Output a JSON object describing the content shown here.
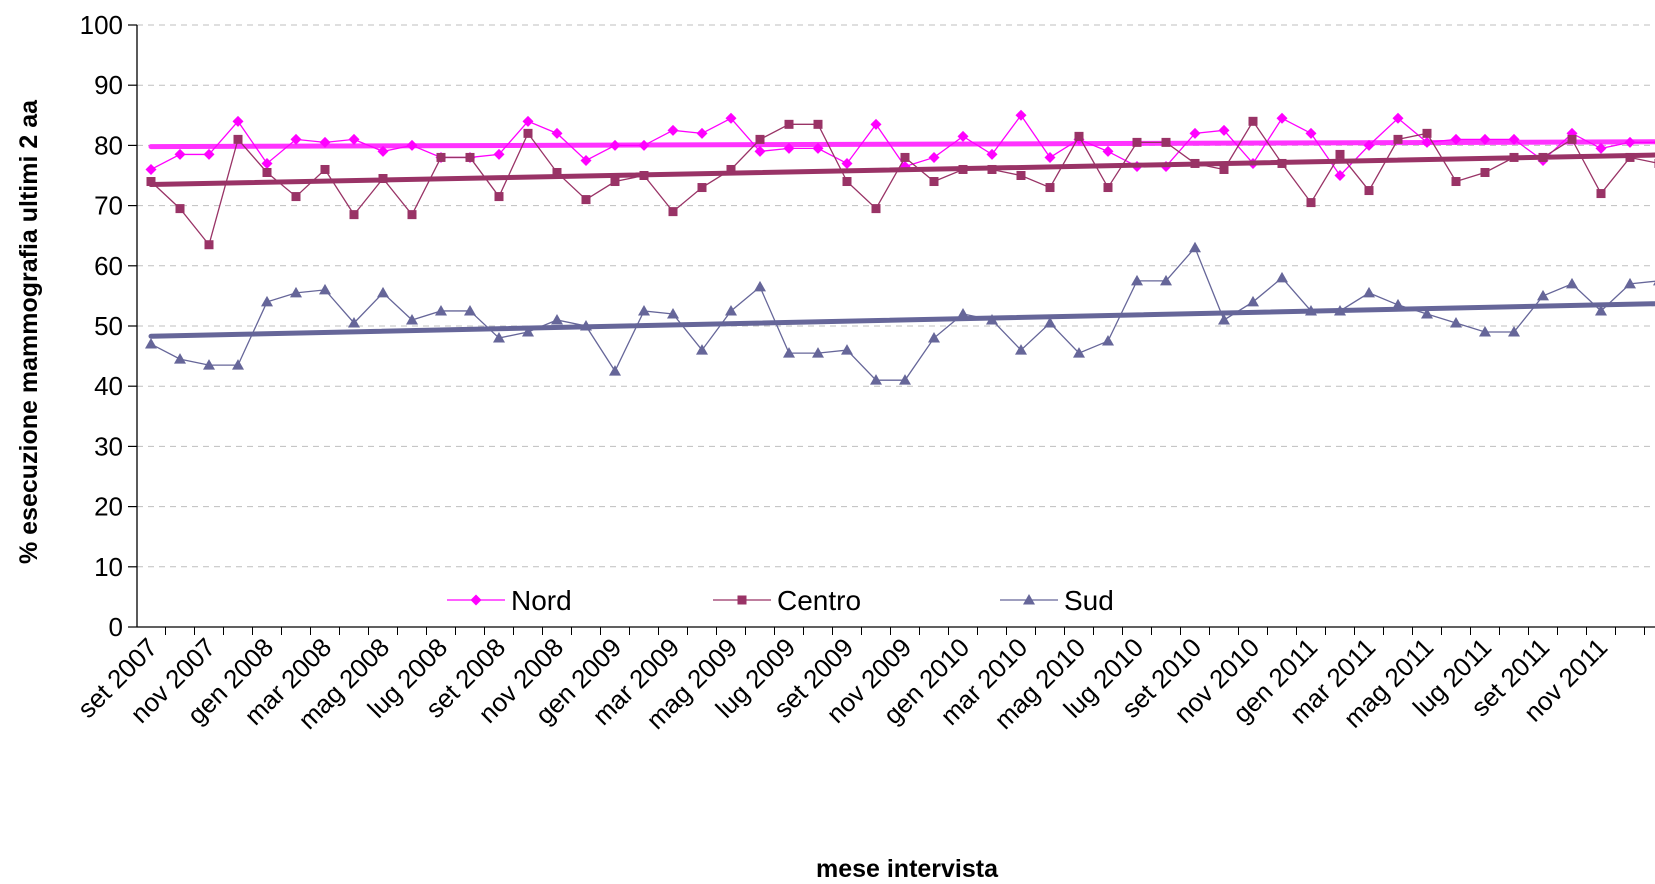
{
  "chart_data": {
    "type": "line",
    "title": "",
    "xlabel": "mese intervista",
    "ylabel": "% esecuzione mammografia ultimi 2 aa",
    "ylim": [
      0,
      100
    ],
    "yticks": [
      "0",
      "10",
      "20",
      "30",
      "40",
      "50",
      "60",
      "70",
      "80",
      "90",
      "100"
    ],
    "grid": "horizontal-dashed",
    "legend_position": "bottom-center-inside",
    "x_tick_labels": [
      "set 2007",
      "nov 2007",
      "gen 2008",
      "mar 2008",
      "mag 2008",
      "lug 2008",
      "set 2008",
      "nov 2008",
      "gen 2009",
      "mar 2009",
      "mag 2009",
      "lug 2009",
      "set 2009",
      "nov 2009",
      "gen 2010",
      "mar 2010",
      "mag 2010",
      "lug 2010",
      "set 2010",
      "nov 2010",
      "gen 2011",
      "mar 2011",
      "mag 2011",
      "lug 2011",
      "set 2011",
      "nov 2011"
    ],
    "months_count": 53,
    "series": [
      {
        "name": "Nord",
        "color": "#ff00ff",
        "marker": "diamond",
        "values": [
          76,
          78.5,
          78.5,
          84,
          77,
          81,
          80.5,
          81,
          79,
          80,
          78,
          78,
          78.5,
          84,
          82,
          77.5,
          80,
          80,
          82.5,
          82,
          84.5,
          79,
          79.5,
          79.5,
          77,
          83.5,
          76.5,
          78,
          81.5,
          78.5,
          85,
          78,
          81,
          79,
          76.5,
          76.5,
          82,
          82.5,
          77,
          84.5,
          82,
          75,
          80,
          84.5,
          80.5,
          81,
          81,
          81,
          77.5,
          82,
          79.5,
          80.5,
          80.5
        ],
        "trend": [
          79.8,
          80.6
        ]
      },
      {
        "name": "Centro",
        "color": "#993366",
        "marker": "square",
        "values": [
          74,
          69.5,
          63.5,
          81,
          75.5,
          71.5,
          76,
          68.5,
          74.5,
          68.5,
          78,
          78,
          71.5,
          82,
          75.5,
          71,
          74,
          75,
          69,
          73,
          76,
          81,
          83.5,
          83.5,
          74,
          69.5,
          78,
          74,
          76,
          76,
          75,
          73,
          81.5,
          73,
          80.5,
          80.5,
          77,
          76,
          84,
          77,
          70.5,
          78.5,
          72.5,
          81,
          82,
          74,
          75.5,
          78,
          78,
          81,
          72,
          78,
          77
        ],
        "trend": [
          73.5,
          78.4
        ]
      },
      {
        "name": "Sud",
        "color": "#666699",
        "marker": "triangle",
        "values": [
          47,
          44.5,
          43.5,
          43.5,
          54,
          55.5,
          56,
          50.5,
          55.5,
          51,
          52.5,
          52.5,
          48,
          49,
          51,
          50,
          42.5,
          52.5,
          52,
          46,
          52.5,
          56.5,
          45.5,
          45.5,
          46,
          41,
          41,
          48,
          52,
          51,
          46,
          50.5,
          45.5,
          47.5,
          57.5,
          57.5,
          63,
          51,
          54,
          58,
          52.5,
          52.5,
          55.5,
          53.5,
          52,
          50.5,
          49,
          49,
          55,
          57,
          52.5,
          57,
          57.5
        ],
        "trend": [
          48.3,
          53.7
        ]
      }
    ]
  }
}
